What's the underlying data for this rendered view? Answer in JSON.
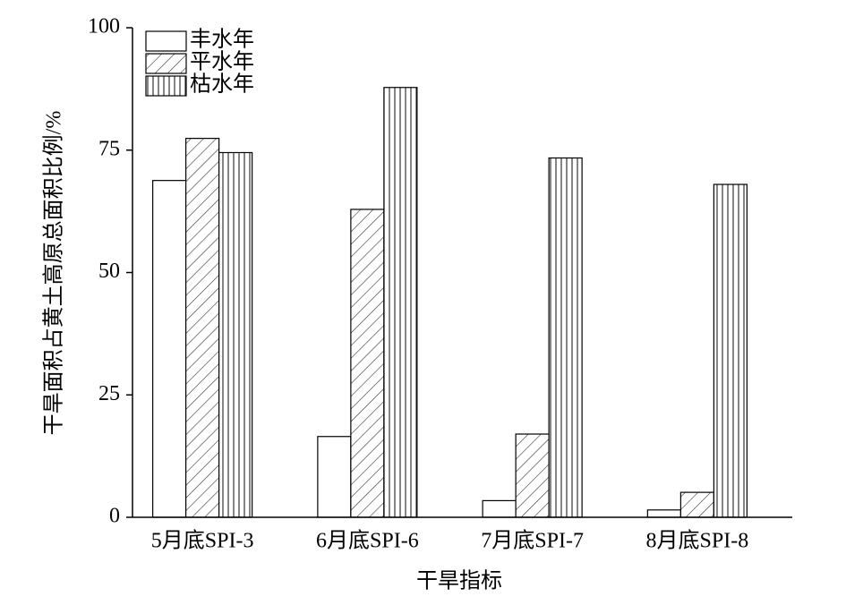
{
  "chart_data": {
    "type": "bar",
    "xlabel": "干旱指标",
    "ylabel": "干旱面积占黄土高原总面积比例/%",
    "categories": [
      "5月底SPI-3",
      "6月底SPI-6",
      "7月底SPI-7",
      "8月底SPI-8"
    ],
    "series": [
      {
        "name": "丰水年",
        "color": "#ffffff",
        "pattern": "none",
        "values": [
          68.8,
          16.5,
          3.4,
          1.5
        ]
      },
      {
        "name": "平水年",
        "color": "#ffffff",
        "pattern": "diagonal",
        "values": [
          77.4,
          62.9,
          17.0,
          5.1
        ]
      },
      {
        "name": "枯水年",
        "color": "#ffffff",
        "pattern": "vertical",
        "values": [
          74.5,
          87.8,
          73.4,
          68.0
        ]
      }
    ],
    "ylim": [
      0,
      100
    ],
    "yticks": [
      0,
      25,
      50,
      75,
      100
    ],
    "grid": false,
    "legend": "upper-left"
  }
}
